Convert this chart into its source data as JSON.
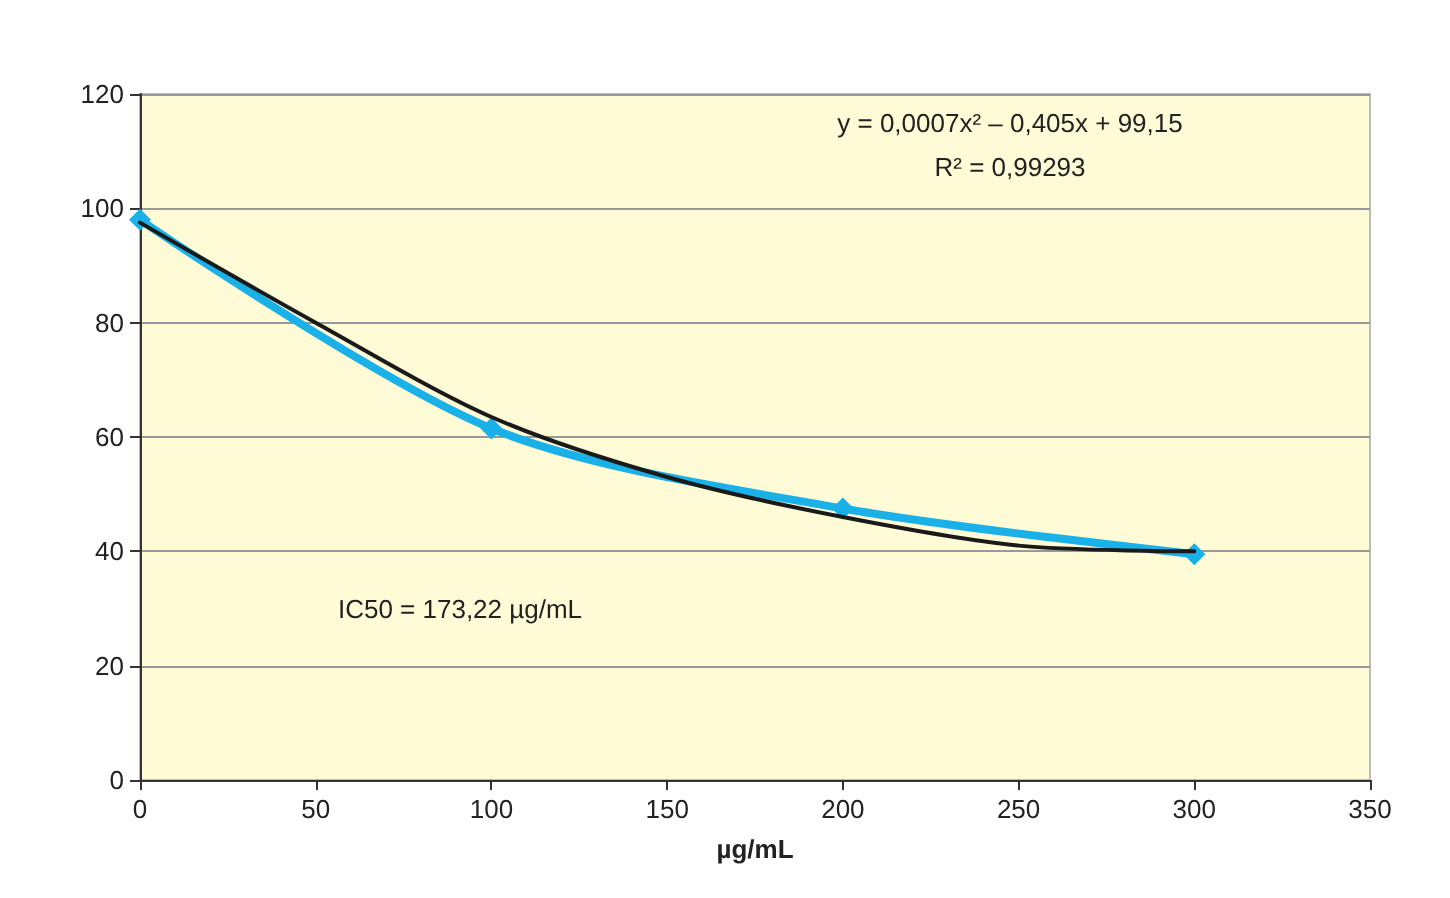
{
  "chart_data": {
    "type": "line",
    "xlabel": "µg/mL",
    "xlim": [
      0,
      350
    ],
    "xticks": [
      0,
      50,
      100,
      150,
      200,
      250,
      300,
      350
    ],
    "ylim": [
      0,
      120
    ],
    "yticks": [
      0,
      20,
      40,
      60,
      80,
      100,
      120
    ],
    "grid": "y",
    "series": [
      {
        "color": "#1ab0e8",
        "marker": "diamond",
        "x": [
          0,
          100,
          200,
          300
        ],
        "values": [
          98,
          61.5,
          47.5,
          39.5
        ]
      },
      {
        "color": "#1a1a1a",
        "marker": "none",
        "x": [
          0,
          50,
          100,
          150,
          200,
          250,
          300
        ],
        "values": [
          97.5,
          80,
          63.5,
          53,
          46,
          41,
          40
        ]
      }
    ],
    "annotations": [
      "y = 0,0007x² – 0,405x + 99,15",
      "R² = 0,99293",
      "IC50 = 173,22 µg/mL"
    ]
  }
}
